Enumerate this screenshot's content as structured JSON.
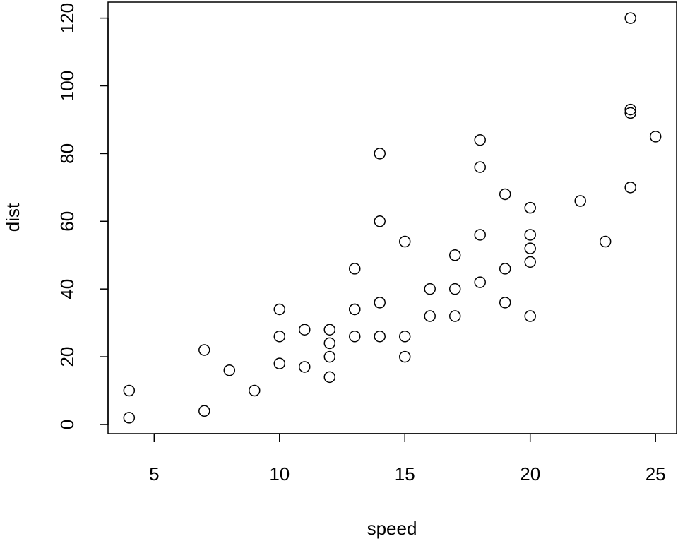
{
  "chart_data": {
    "type": "scatter",
    "xlabel": "speed",
    "ylabel": "dist",
    "x": [
      4,
      4,
      7,
      7,
      8,
      9,
      10,
      10,
      10,
      11,
      11,
      12,
      12,
      12,
      12,
      13,
      13,
      13,
      13,
      14,
      14,
      14,
      14,
      15,
      15,
      15,
      16,
      16,
      17,
      17,
      17,
      18,
      18,
      18,
      18,
      19,
      19,
      19,
      20,
      20,
      20,
      20,
      20,
      22,
      23,
      24,
      24,
      24,
      24,
      25
    ],
    "values": [
      2,
      10,
      4,
      22,
      16,
      10,
      18,
      26,
      34,
      17,
      28,
      14,
      20,
      24,
      28,
      26,
      34,
      34,
      46,
      26,
      36,
      60,
      80,
      20,
      26,
      54,
      32,
      40,
      32,
      40,
      50,
      42,
      56,
      76,
      84,
      36,
      46,
      68,
      32,
      48,
      52,
      56,
      64,
      66,
      54,
      70,
      92,
      93,
      120,
      85
    ],
    "color": "#000000",
    "xlim": [
      3.16,
      25.84
    ],
    "ylim": [
      -2.72,
      124.72
    ],
    "xticks": [
      5,
      10,
      15,
      20,
      25
    ],
    "yticks": [
      0,
      20,
      40,
      60,
      80,
      100,
      120
    ]
  }
}
